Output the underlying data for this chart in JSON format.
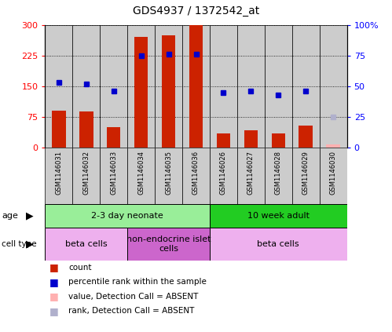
{
  "title": "GDS4937 / 1372542_at",
  "samples": [
    "GSM1146031",
    "GSM1146032",
    "GSM1146033",
    "GSM1146034",
    "GSM1146035",
    "GSM1146036",
    "GSM1146026",
    "GSM1146027",
    "GSM1146028",
    "GSM1146029",
    "GSM1146030"
  ],
  "count_values": [
    90,
    88,
    50,
    270,
    275,
    300,
    35,
    42,
    35,
    55,
    null
  ],
  "rank_values": [
    53,
    52,
    46,
    75,
    76,
    76,
    45,
    46,
    43,
    46,
    null
  ],
  "count_absent": [
    null,
    null,
    null,
    null,
    null,
    null,
    null,
    null,
    null,
    null,
    8
  ],
  "rank_absent": [
    null,
    null,
    null,
    null,
    null,
    null,
    null,
    null,
    null,
    null,
    25
  ],
  "ylim_left": [
    0,
    300
  ],
  "ylim_right": [
    0,
    100
  ],
  "yticks_left": [
    0,
    75,
    150,
    225,
    300
  ],
  "yticks_right": [
    0,
    25,
    50,
    75,
    100
  ],
  "ytick_labels_left": [
    "0",
    "75",
    "150",
    "225",
    "300"
  ],
  "ytick_labels_right": [
    "0",
    "25",
    "50",
    "75",
    "100%"
  ],
  "bar_color": "#CC2200",
  "dot_color": "#0000CC",
  "absent_bar_color": "#FFB0B0",
  "absent_dot_color": "#B0B0CC",
  "age_groups": [
    {
      "label": "2-3 day neonate",
      "start": 0,
      "end": 6,
      "color": "#99EE99"
    },
    {
      "label": "10 week adult",
      "start": 6,
      "end": 11,
      "color": "#22CC22"
    }
  ],
  "cell_groups": [
    {
      "label": "beta cells",
      "start": 0,
      "end": 3,
      "color": "#EEB0EE"
    },
    {
      "label": "non-endocrine islet\ncells",
      "start": 3,
      "end": 6,
      "color": "#CC66CC"
    },
    {
      "label": "beta cells",
      "start": 6,
      "end": 11,
      "color": "#EEB0EE"
    }
  ],
  "legend_items": [
    {
      "label": "count",
      "color": "#CC2200"
    },
    {
      "label": "percentile rank within the sample",
      "color": "#0000CC"
    },
    {
      "label": "value, Detection Call = ABSENT",
      "color": "#FFB0B0"
    },
    {
      "label": "rank, Detection Call = ABSENT",
      "color": "#B0B0CC"
    }
  ],
  "background_color": "#FFFFFF",
  "axis_bg_color": "#CCCCCC"
}
